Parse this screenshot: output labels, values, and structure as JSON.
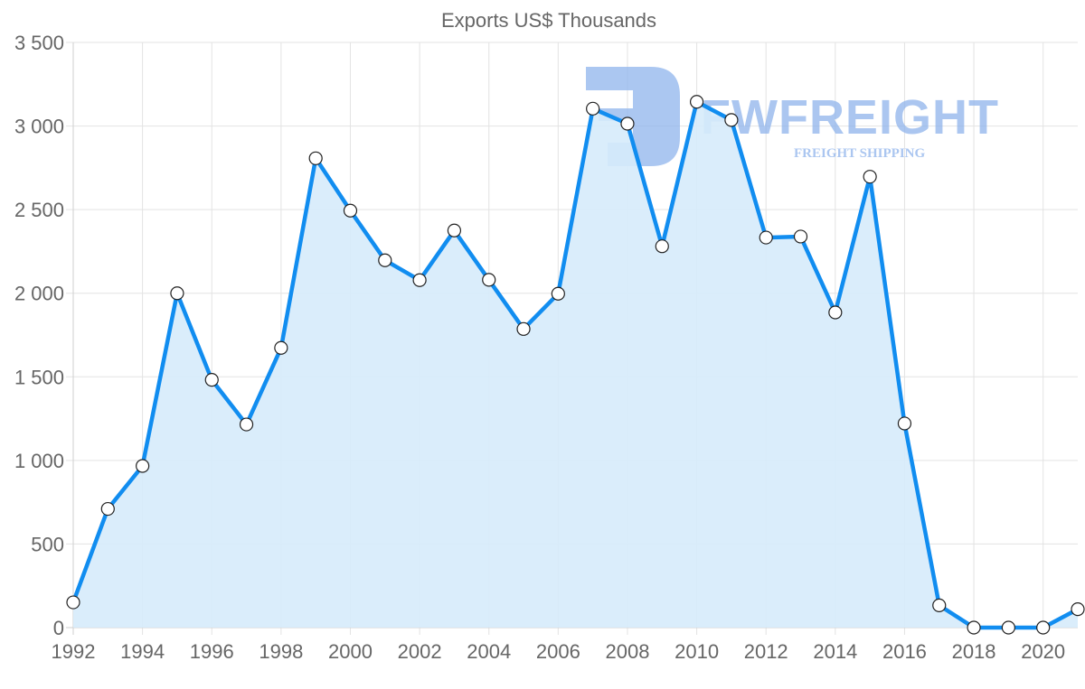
{
  "chart_data": {
    "type": "area",
    "title": "Exports US$ Thousands",
    "xlabel": "",
    "ylabel": "",
    "x": [
      1992,
      1993,
      1994,
      1995,
      1996,
      1997,
      1998,
      1999,
      2000,
      2001,
      2002,
      2003,
      2004,
      2005,
      2006,
      2007,
      2008,
      2009,
      2010,
      2011,
      2012,
      2013,
      2014,
      2015,
      2016,
      2017,
      2018,
      2019,
      2020,
      2021
    ],
    "series": [
      {
        "name": "Exports US$ Thousands",
        "values": [
          151,
          710,
          967,
          2000,
          1482,
          1215,
          1673,
          2807,
          2494,
          2197,
          2078,
          2375,
          2080,
          1786,
          1997,
          3104,
          3014,
          2281,
          3145,
          3036,
          2333,
          2339,
          1885,
          2697,
          1221,
          133,
          0,
          0,
          0,
          110
        ],
        "color": "#118DF0",
        "fill": "#D6EBFB"
      }
    ],
    "ylim": [
      0,
      3500
    ],
    "y_ticks": [
      0,
      500,
      1000,
      1500,
      2000,
      2500,
      3000,
      3500
    ],
    "y_tick_labels": [
      "0",
      "500",
      "1 000",
      "1 500",
      "2 000",
      "2 500",
      "3 000",
      "3 500"
    ],
    "x_tick_labels": [
      "1992",
      "1994",
      "1996",
      "1998",
      "2000",
      "2002",
      "2004",
      "2006",
      "2008",
      "2010",
      "2012",
      "2014",
      "2016",
      "2018",
      "2020"
    ],
    "grid": true,
    "legend": "none"
  },
  "watermark": {
    "brand": "FWFREIGHT",
    "tagline": "FREIGHT SHIPPING",
    "color": "#8FB4EC"
  }
}
